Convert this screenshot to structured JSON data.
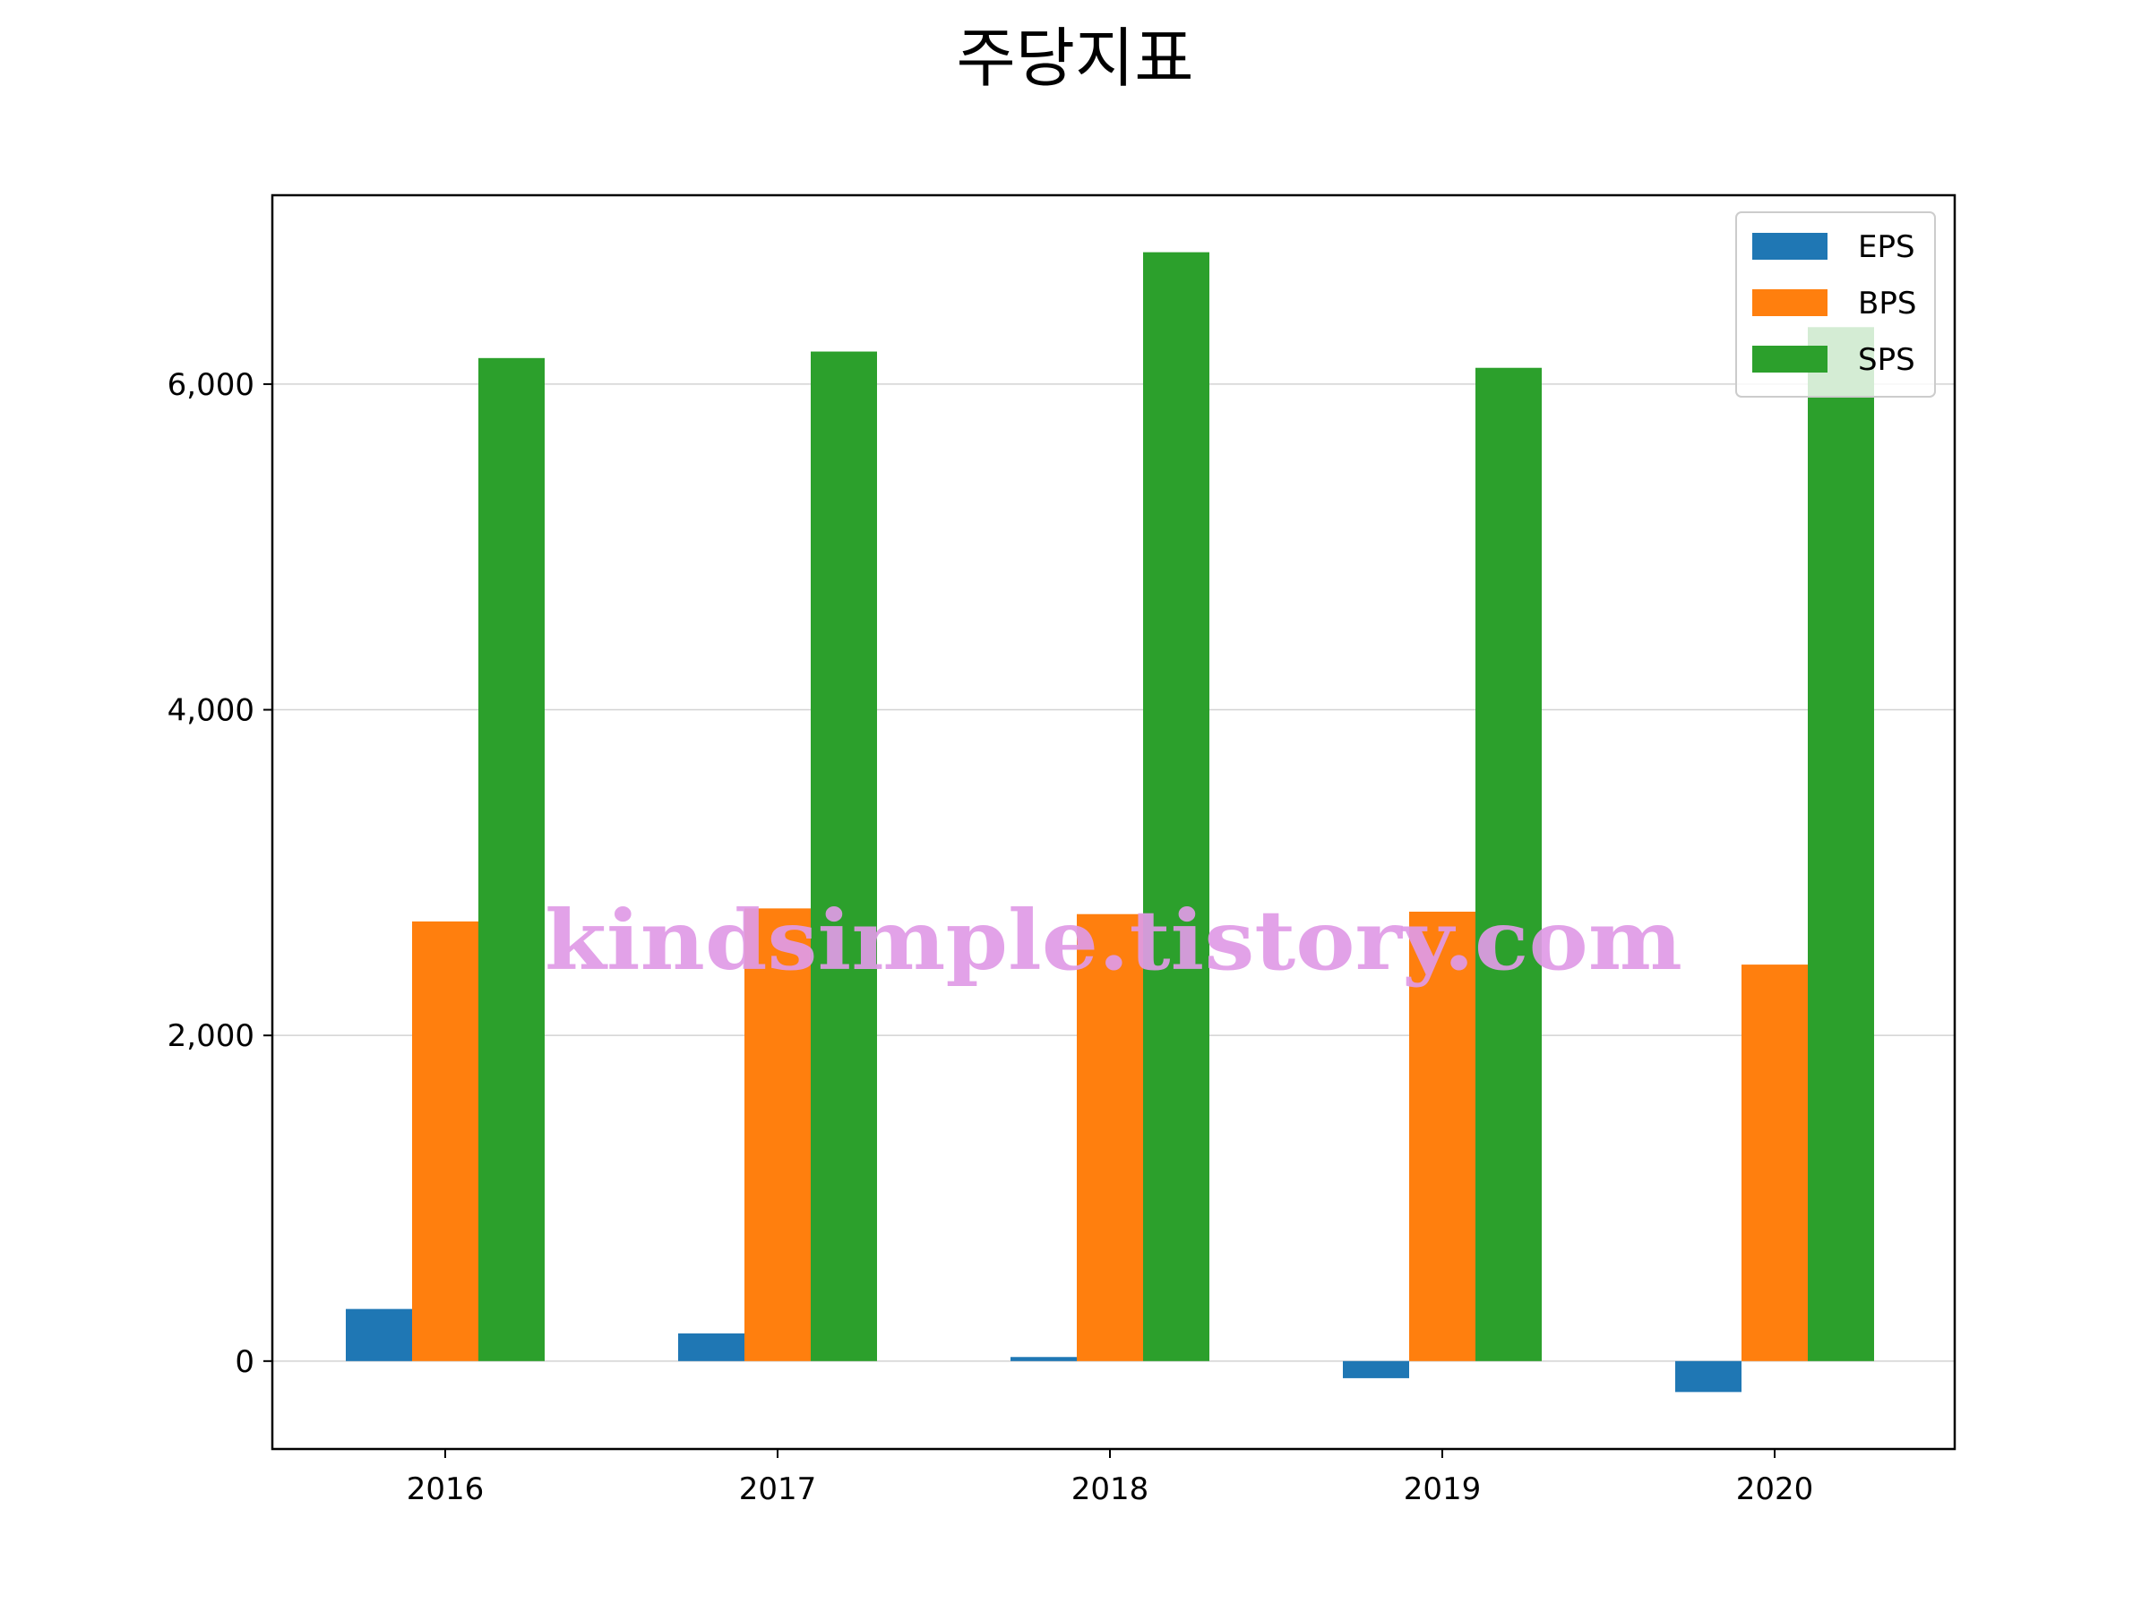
{
  "chart_data": {
    "type": "bar",
    "title": "주당지표",
    "xlabel": "",
    "ylabel": "",
    "categories": [
      "2016",
      "2017",
      "2018",
      "2019",
      "2020"
    ],
    "series": [
      {
        "name": "EPS",
        "color": "#1f77b4",
        "values": [
          320,
          170,
          25,
          -105,
          -190
        ]
      },
      {
        "name": "BPS",
        "color": "#ff7f0e",
        "values": [
          2700,
          2780,
          2745,
          2760,
          2435
        ]
      },
      {
        "name": "SPS",
        "color": "#2ca02c",
        "values": [
          6160,
          6200,
          6810,
          6100,
          6350
        ]
      }
    ],
    "ylim": [
      -540,
      7160
    ],
    "yticks": [
      0,
      2000,
      4000,
      6000
    ],
    "ytick_labels": [
      "0",
      "2,000",
      "4,000",
      "6,000"
    ],
    "grid": "horizontal",
    "legend_position": "top-right"
  },
  "watermark": "kindsimple.tistory.com"
}
